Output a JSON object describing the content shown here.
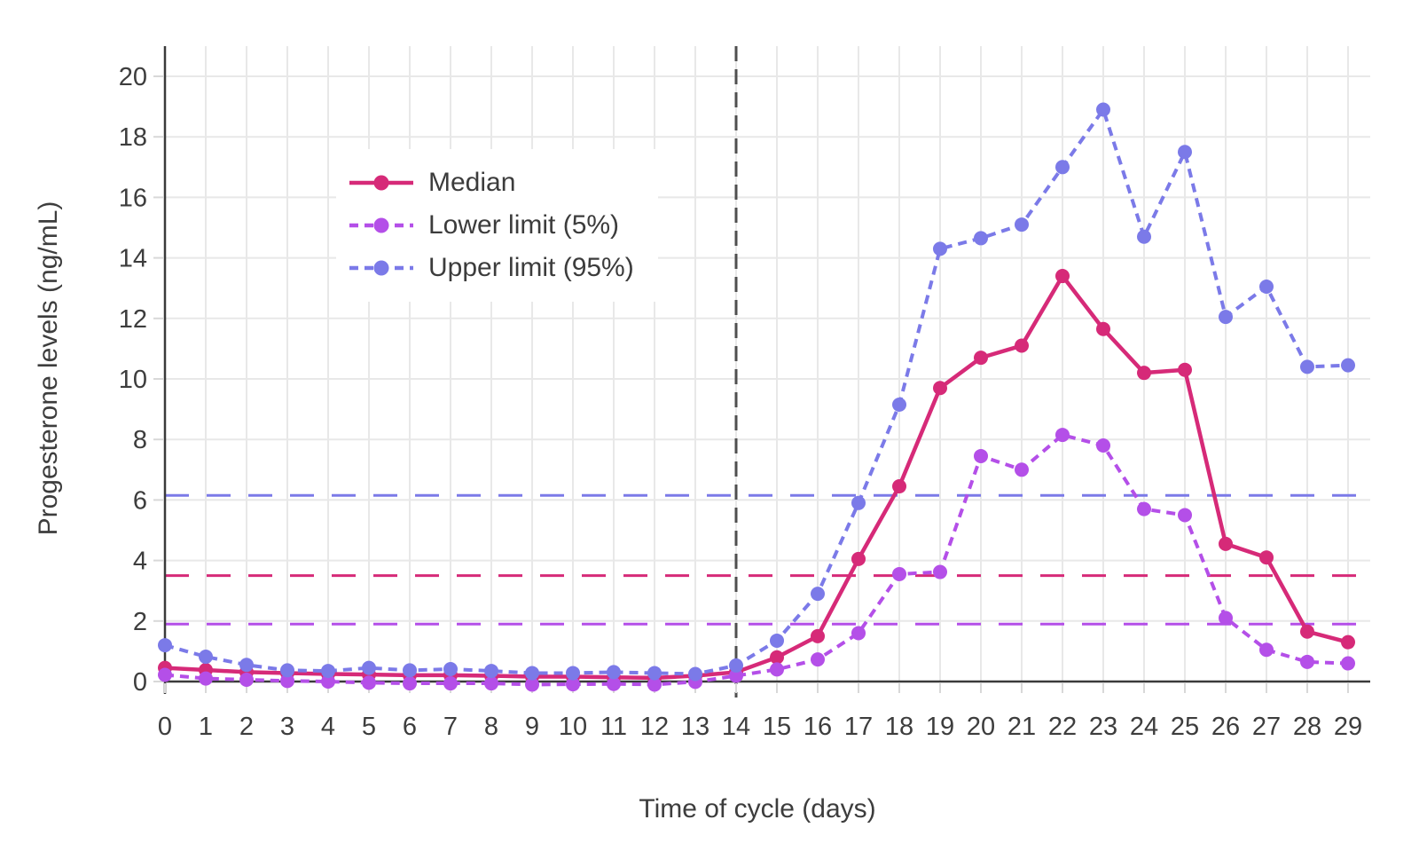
{
  "figure": {
    "x_axis_title": "Time of cycle (days)",
    "y_axis_title": "Progesterone levels (ng/mL)"
  },
  "legend": {
    "items": [
      {
        "label": "Median",
        "style": "solid",
        "color": "#d62a78"
      },
      {
        "label": "Lower limit (5%)",
        "style": "dashed",
        "color": "#b44fe8"
      },
      {
        "label": "Upper limit (95%)",
        "style": "dashed",
        "color": "#7b7ae8"
      }
    ]
  },
  "chart_data": {
    "type": "line",
    "title": "",
    "xlabel": "Time of cycle (days)",
    "ylabel": "Progesterone levels (ng/mL)",
    "xlim": [
      0,
      29
    ],
    "ylim": [
      0,
      20
    ],
    "grid": true,
    "legend_position": "upper-left-inside",
    "x": [
      0,
      1,
      2,
      3,
      4,
      5,
      6,
      7,
      8,
      9,
      10,
      11,
      12,
      13,
      14,
      15,
      16,
      17,
      18,
      19,
      20,
      21,
      22,
      23,
      24,
      25,
      26,
      27,
      28,
      29
    ],
    "x_ticks": [
      0,
      1,
      2,
      3,
      4,
      5,
      6,
      7,
      8,
      9,
      10,
      11,
      12,
      13,
      14,
      15,
      16,
      17,
      18,
      19,
      20,
      21,
      22,
      23,
      24,
      25,
      26,
      27,
      28,
      29
    ],
    "y_ticks": [
      0,
      2,
      4,
      6,
      8,
      10,
      12,
      14,
      16,
      18,
      20
    ],
    "series": [
      {
        "name": "Median",
        "color": "#d62a78",
        "line": "solid",
        "values": [
          0.45,
          0.38,
          0.31,
          0.28,
          0.25,
          0.23,
          0.21,
          0.21,
          0.19,
          0.16,
          0.16,
          0.14,
          0.12,
          0.19,
          0.31,
          0.8,
          1.5,
          4.05,
          6.45,
          9.7,
          10.7,
          11.1,
          13.4,
          11.65,
          10.2,
          10.3,
          4.55,
          4.1,
          1.65,
          1.3
        ]
      },
      {
        "name": "Lower limit (5%)",
        "color": "#b44fe8",
        "line": "dashed",
        "values": [
          0.22,
          0.1,
          0.06,
          0.02,
          0,
          -0.04,
          -0.06,
          -0.06,
          -0.06,
          -0.1,
          -0.09,
          -0.08,
          -0.1,
          -0.01,
          0.19,
          0.4,
          0.73,
          1.6,
          3.55,
          3.62,
          7.45,
          7.0,
          8.15,
          7.8,
          5.7,
          5.5,
          2.1,
          1.05,
          0.65,
          0.6
        ]
      },
      {
        "name": "Upper limit (95%)",
        "color": "#7b7ae8",
        "line": "dashed",
        "values": [
          1.2,
          0.82,
          0.55,
          0.37,
          0.35,
          0.45,
          0.37,
          0.41,
          0.35,
          0.28,
          0.28,
          0.31,
          0.28,
          0.25,
          0.53,
          1.35,
          2.9,
          5.9,
          9.15,
          14.3,
          14.65,
          15.1,
          17.0,
          18.9,
          14.7,
          17.5,
          12.05,
          13.05,
          10.4,
          10.45
        ]
      }
    ],
    "reference_lines": {
      "horizontal": [
        {
          "y": 6.15,
          "color": "#7b7ae8",
          "style": "long-dash"
        },
        {
          "y": 3.5,
          "color": "#d62a78",
          "style": "long-dash"
        },
        {
          "y": 1.9,
          "color": "#b44fe8",
          "style": "long-dash"
        }
      ],
      "vertical": [
        {
          "x": 14,
          "color": "#4f4f4f",
          "style": "dash"
        }
      ]
    }
  },
  "colors": {
    "background": "#ffffff",
    "gridline": "#e8e8e8",
    "axis_line": "#3a3a3a",
    "tick_mark": "#d8d8d8",
    "tick_text": "#3d3d3d",
    "median": "#d62a78",
    "lower_limit": "#b44fe8",
    "upper_limit": "#7b7ae8",
    "cycle_day_marker": "#4f4f4f"
  }
}
